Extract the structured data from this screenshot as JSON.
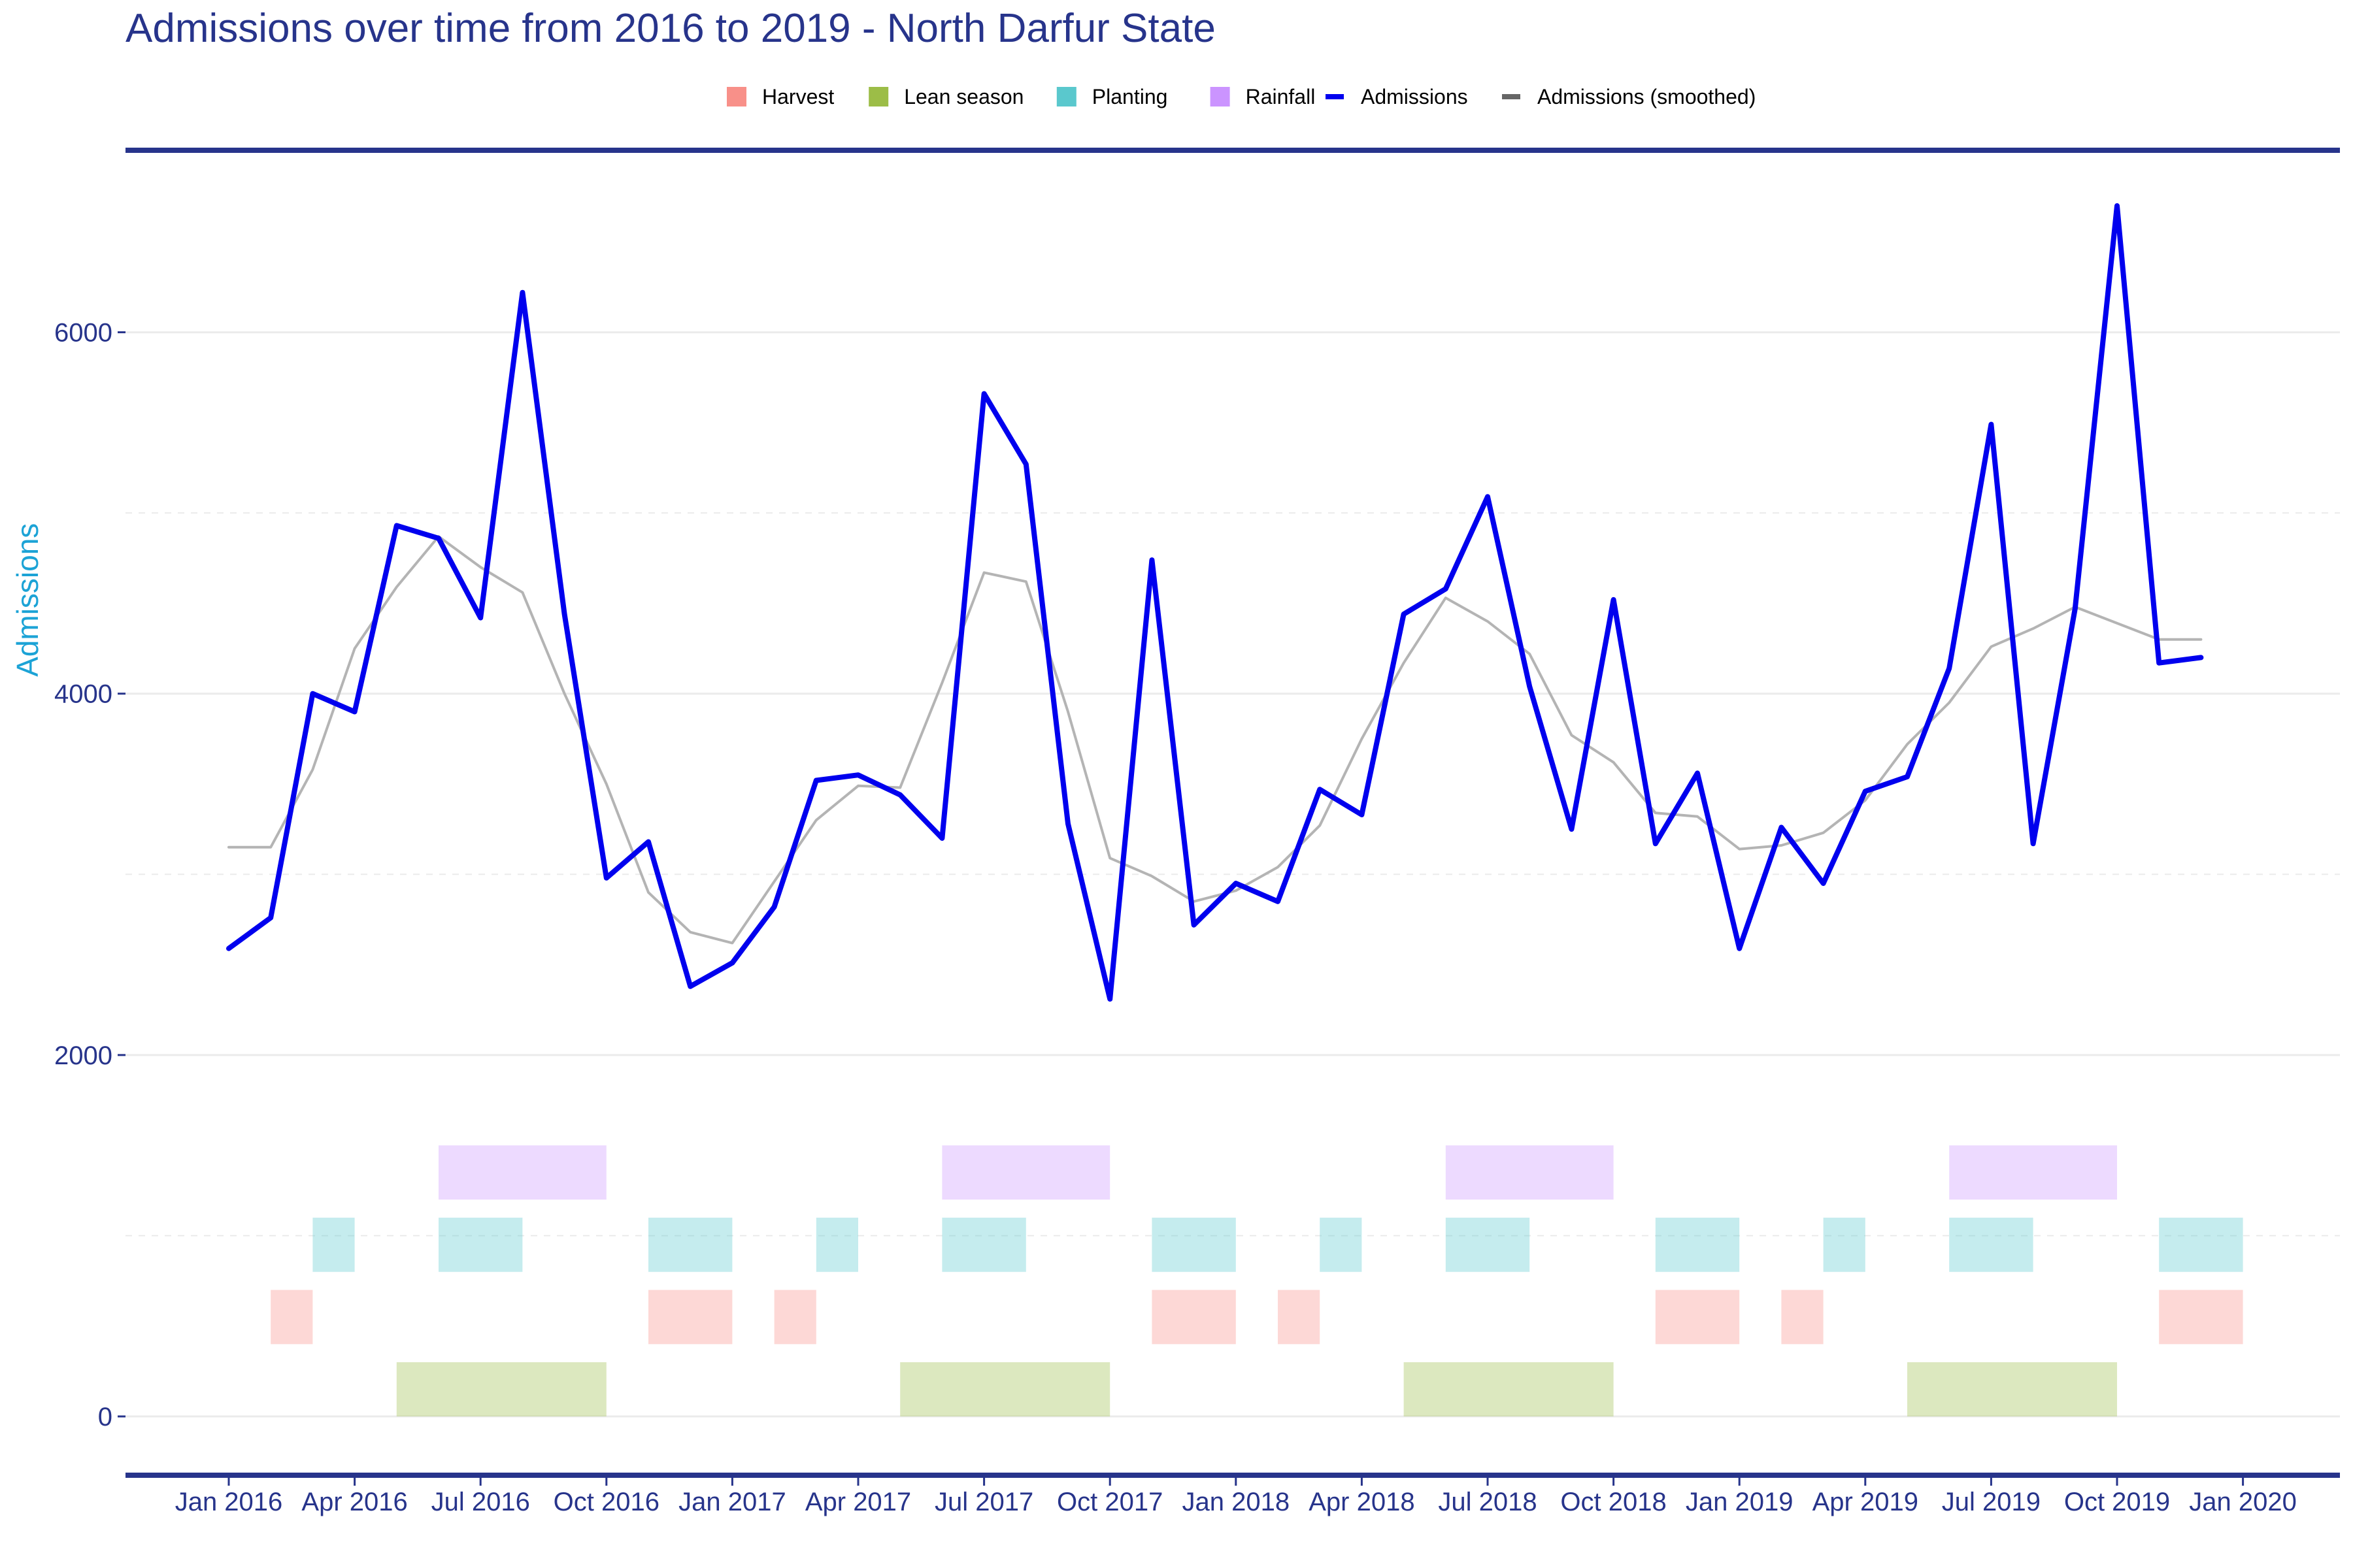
{
  "chart_data": {
    "type": "line",
    "title": "Admissions over time from 2016 to 2019 - North Darfur State",
    "ylabel": "Admissions",
    "ylim": [
      -330,
      7000
    ],
    "yticks": [
      0,
      2000,
      4000,
      6000
    ],
    "xticks": [
      "Jan 2016",
      "Apr 2016",
      "Jul 2016",
      "Oct 2016",
      "Jan 2017",
      "Apr 2017",
      "Jul 2017",
      "Oct 2017",
      "Jan 2018",
      "Apr 2018",
      "Jul 2018",
      "Oct 2018",
      "Jan 2019",
      "Apr 2019",
      "Jul 2019",
      "Oct 2019",
      "Jan 2020"
    ],
    "x": [
      "2016-01",
      "2016-02",
      "2016-03",
      "2016-04",
      "2016-05",
      "2016-06",
      "2016-07",
      "2016-08",
      "2016-09",
      "2016-10",
      "2016-11",
      "2016-12",
      "2017-01",
      "2017-02",
      "2017-03",
      "2017-04",
      "2017-05",
      "2017-06",
      "2017-07",
      "2017-08",
      "2017-09",
      "2017-10",
      "2017-11",
      "2017-12",
      "2018-01",
      "2018-02",
      "2018-03",
      "2018-04",
      "2018-05",
      "2018-06",
      "2018-07",
      "2018-08",
      "2018-09",
      "2018-10",
      "2018-11",
      "2018-12",
      "2019-01",
      "2019-02",
      "2019-03",
      "2019-04",
      "2019-05",
      "2019-06",
      "2019-07",
      "2019-08",
      "2019-09",
      "2019-10",
      "2019-11",
      "2019-12"
    ],
    "series": [
      {
        "name": "Admissions",
        "color": "#0000ee",
        "values": [
          2590,
          2760,
          4000,
          3900,
          4930,
          4860,
          4420,
          6220,
          4440,
          2980,
          3180,
          2380,
          2510,
          2820,
          3520,
          3550,
          3440,
          3200,
          5660,
          5270,
          3280,
          2310,
          4740,
          2720,
          2950,
          2850,
          3470,
          3330,
          4440,
          4580,
          5090,
          4040,
          3250,
          4520,
          3170,
          3560,
          2590,
          3260,
          2950,
          3460,
          3540,
          4140,
          5490,
          3170,
          4470,
          6700,
          4170,
          4200
        ]
      },
      {
        "name": "Admissions (smoothed)",
        "color": "#b4b4b4",
        "values": [
          3150,
          3150,
          3580,
          4250,
          4590,
          4870,
          4700,
          4560,
          4000,
          3500,
          2900,
          2680,
          2620,
          2960,
          3300,
          3490,
          3480,
          4060,
          4670,
          4620,
          3900,
          3090,
          2990,
          2850,
          2910,
          3040,
          3270,
          3750,
          4170,
          4530,
          4400,
          4220,
          3770,
          3620,
          3340,
          3320,
          3140,
          3160,
          3230,
          3410,
          3720,
          3950,
          4260,
          4360,
          4480,
          4390,
          4300,
          4300
        ]
      }
    ],
    "seasons": {
      "Rainfall": {
        "color": "#cb94ff",
        "band": [
          1200,
          1500
        ],
        "ranges": [
          [
            "2016-06",
            "2016-10"
          ],
          [
            "2017-06",
            "2017-10"
          ],
          [
            "2018-06",
            "2018-10"
          ],
          [
            "2019-06",
            "2019-10"
          ]
        ]
      },
      "Planting": {
        "color": "#5ac8cd",
        "band": [
          800,
          1100
        ],
        "ranges": [
          [
            "2016-03",
            "2016-04"
          ],
          [
            "2016-06",
            "2016-08"
          ],
          [
            "2016-11",
            "2017-01"
          ],
          [
            "2017-03",
            "2017-04"
          ],
          [
            "2017-06",
            "2017-08"
          ],
          [
            "2017-11",
            "2018-01"
          ],
          [
            "2018-03",
            "2018-04"
          ],
          [
            "2018-06",
            "2018-08"
          ],
          [
            "2018-11",
            "2019-01"
          ],
          [
            "2019-03",
            "2019-04"
          ],
          [
            "2019-06",
            "2019-08"
          ],
          [
            "2019-11",
            "2020-01"
          ]
        ]
      },
      "Harvest": {
        "color": "#f89089",
        "band": [
          400,
          700
        ],
        "ranges": [
          [
            "2016-02",
            "2016-03"
          ],
          [
            "2016-11",
            "2017-01"
          ],
          [
            "2017-02",
            "2017-03"
          ],
          [
            "2017-11",
            "2018-01"
          ],
          [
            "2018-02",
            "2018-03"
          ],
          [
            "2018-11",
            "2019-01"
          ],
          [
            "2019-02",
            "2019-03"
          ],
          [
            "2019-11",
            "2020-01"
          ]
        ]
      },
      "Lean season": {
        "color": "#9cbd47",
        "band": [
          0,
          300
        ],
        "ranges": [
          [
            "2016-05",
            "2016-10"
          ],
          [
            "2017-05",
            "2017-10"
          ],
          [
            "2018-05",
            "2018-10"
          ],
          [
            "2019-05",
            "2019-10"
          ]
        ]
      }
    },
    "legend": {
      "placement": "top",
      "fill_items": [
        {
          "label": "Harvest",
          "color": "#f89089"
        },
        {
          "label": "Lean season",
          "color": "#9cbd47"
        },
        {
          "label": "Planting",
          "color": "#5ac8cd"
        },
        {
          "label": "Rainfall",
          "color": "#cb94ff"
        }
      ],
      "line_items": [
        {
          "label": "Admissions",
          "color": "#0000ee"
        },
        {
          "label": "Admissions (smoothed)",
          "color": "#666666"
        }
      ]
    },
    "colors": {
      "accent": "#27348b",
      "grid": "#ebebeb",
      "ylabel": "#1ca3d6"
    },
    "grid": true
  }
}
